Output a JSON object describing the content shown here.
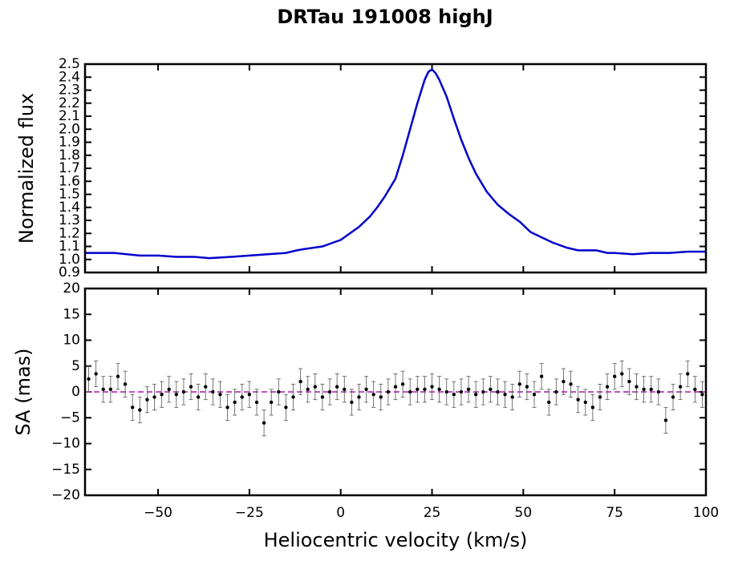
{
  "chart_data": [
    {
      "type": "line",
      "title": "DRTau 191008 highJ",
      "ylabel": "Normalized flux",
      "x": [
        -70,
        -62,
        -55,
        -50,
        -45,
        -40,
        -36,
        -30,
        -25,
        -20,
        -15,
        -12,
        -10,
        -5,
        -2,
        0,
        2,
        5,
        8,
        10,
        12,
        15,
        17,
        19,
        21,
        23,
        24,
        25,
        26,
        27,
        29,
        31,
        33,
        35,
        37,
        40,
        43,
        46,
        49,
        52,
        55,
        58,
        62,
        65,
        70,
        73,
        75,
        80,
        85,
        90,
        95,
        100
      ],
      "series": [
        {
          "name": "flux",
          "color": "#0000cc",
          "values": [
            1.05,
            1.05,
            1.03,
            1.03,
            1.02,
            1.02,
            1.01,
            1.02,
            1.03,
            1.04,
            1.05,
            1.07,
            1.08,
            1.1,
            1.13,
            1.15,
            1.19,
            1.25,
            1.33,
            1.4,
            1.48,
            1.62,
            1.8,
            2.0,
            2.2,
            2.38,
            2.44,
            2.46,
            2.43,
            2.38,
            2.25,
            2.08,
            1.92,
            1.78,
            1.66,
            1.52,
            1.42,
            1.35,
            1.29,
            1.21,
            1.17,
            1.13,
            1.09,
            1.07,
            1.07,
            1.05,
            1.05,
            1.04,
            1.05,
            1.05,
            1.06,
            1.06
          ]
        }
      ],
      "xlim": [
        -70,
        100
      ],
      "xticks": [
        -50,
        -25,
        0,
        25,
        50,
        75,
        100
      ],
      "ylim": [
        0.9,
        2.5
      ],
      "yticks": [
        0.9,
        {
          "value": 1,
          "label": "1.0"
        },
        1.1,
        1.2,
        1.3,
        1.4,
        1.5,
        1.6,
        1.7,
        1.8,
        1.9,
        {
          "value": 2,
          "label": "2.0"
        },
        2.1,
        2.2,
        2.3,
        2.4,
        2.5
      ]
    },
    {
      "type": "errorbar",
      "ylabel": "SA (mas)",
      "xlabel": "Heliocentric velocity (km/s)",
      "x": [
        -69,
        -67,
        -65,
        -63,
        -61,
        -59,
        -57,
        -55,
        -53,
        -51,
        -49,
        -47,
        -45,
        -43,
        -41,
        -39,
        -37,
        -35,
        -33,
        -31,
        -29,
        -27,
        -25,
        -23,
        -21,
        -19,
        -17,
        -15,
        -13,
        -11,
        -9,
        -7,
        -5,
        -3,
        -1,
        1,
        3,
        5,
        7,
        9,
        11,
        13,
        15,
        17,
        19,
        21,
        23,
        25,
        27,
        29,
        31,
        33,
        35,
        37,
        39,
        41,
        43,
        45,
        47,
        49,
        51,
        53,
        55,
        57,
        59,
        61,
        63,
        65,
        67,
        69,
        71,
        73,
        75,
        77,
        79,
        81,
        83,
        85,
        87,
        89,
        91,
        93,
        95,
        97,
        99
      ],
      "series": [
        {
          "name": "SA",
          "color": "#000000",
          "error_color": "#555555",
          "values": [
            2.5,
            3.5,
            0.5,
            0.5,
            3,
            1.5,
            -3,
            -3.5,
            -1.5,
            -1,
            -0.5,
            0.5,
            -0.5,
            0,
            1,
            -1,
            1,
            0,
            -0.5,
            -3,
            -2,
            -1,
            -0.5,
            -2,
            -6,
            -2,
            0,
            -3,
            -1,
            2,
            0.5,
            1,
            -1,
            0,
            1,
            0.5,
            -2,
            -1,
            0.5,
            -0.5,
            -1,
            0,
            1,
            1.5,
            0,
            0.5,
            0.5,
            1,
            0.5,
            0,
            -0.5,
            0,
            0.5,
            -0.5,
            0,
            0.5,
            0,
            -0.5,
            -1,
            1.5,
            1,
            -0.5,
            3,
            -2,
            0,
            2,
            1.5,
            -1.5,
            -2,
            -3,
            -1,
            1,
            3,
            3.5,
            2,
            1,
            0.5,
            0.5,
            0,
            -5.5,
            -1,
            1,
            3.5,
            0.5,
            -0.5
          ],
          "yerr": 2.5
        }
      ],
      "reference_line": {
        "value": 0,
        "color": "#c050c0"
      },
      "xlim": [
        -70,
        100
      ],
      "xticks": [
        {
          "value": -50,
          "label": "−50"
        },
        {
          "value": -25,
          "label": "−25"
        },
        0,
        25,
        50,
        75,
        100
      ],
      "ylim": [
        -20,
        20
      ],
      "yticks": [
        {
          "value": -20,
          "label": "−20"
        },
        {
          "value": -15,
          "label": "−15"
        },
        {
          "value": -10,
          "label": "−10"
        },
        {
          "value": -5,
          "label": "−5"
        },
        0,
        5,
        10,
        15,
        20
      ]
    }
  ]
}
